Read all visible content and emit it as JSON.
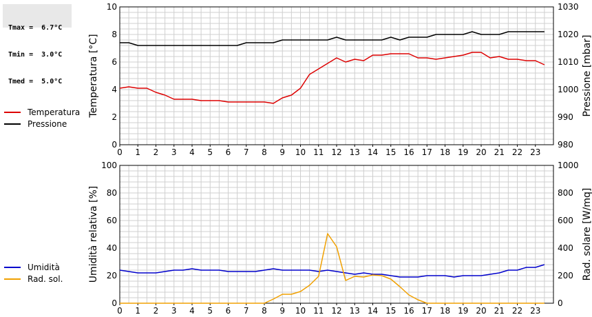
{
  "stats": {
    "tmax": "Tmax =  6.7°C",
    "tmin": "Tmin =  3.0°C",
    "tmed": "Tmed =  5.0°C"
  },
  "colors": {
    "temperatura": "#dd0000",
    "pressione": "#000000",
    "umidita": "#0000cc",
    "rad_sol": "#f0a000",
    "grid": "#cfcfcf",
    "frame": "#000000"
  },
  "legend_top": {
    "temperatura": "Temperatura",
    "pressione": "Pressione"
  },
  "legend_bottom": {
    "umidita": "Umidità",
    "rad_sol": "Rad. sol."
  },
  "chart_data": [
    {
      "type": "line",
      "ylabel_left": "Temperatura [°C]",
      "ylabel_right": "Pressione [mbar]",
      "x_ticks": [
        "0",
        "1",
        "2",
        "3",
        "4",
        "5",
        "6",
        "7",
        "8",
        "9",
        "10",
        "11",
        "12",
        "13",
        "14",
        "15",
        "16",
        "17",
        "18",
        "19",
        "20",
        "21",
        "22",
        "23"
      ],
      "xlim": [
        0,
        24
      ],
      "ylim_left": [
        0,
        10
      ],
      "ylim_right": [
        980,
        1030
      ],
      "yticks_left": [
        "0",
        "2",
        "4",
        "6",
        "8",
        "10"
      ],
      "yticks_right": [
        "980",
        "990",
        "1000",
        "1010",
        "1020",
        "1030"
      ],
      "grid": true,
      "series": [
        {
          "name": "Temperatura",
          "axis": "left",
          "x": [
            0,
            0.5,
            1,
            1.5,
            2,
            2.5,
            3,
            3.5,
            4,
            4.5,
            5,
            5.5,
            6,
            6.5,
            7,
            7.5,
            8,
            8.5,
            9,
            9.5,
            10,
            10.5,
            11,
            11.5,
            12,
            12.5,
            13,
            13.5,
            14,
            14.5,
            15,
            15.5,
            16,
            16.5,
            17,
            17.5,
            18,
            18.5,
            19,
            19.5,
            20,
            20.5,
            21,
            21.5,
            22,
            22.5,
            23,
            23.5
          ],
          "y": [
            4.1,
            4.2,
            4.1,
            4.1,
            3.8,
            3.6,
            3.3,
            3.3,
            3.3,
            3.2,
            3.2,
            3.2,
            3.1,
            3.1,
            3.1,
            3.1,
            3.1,
            3.0,
            3.4,
            3.6,
            4.1,
            5.1,
            5.5,
            5.9,
            6.3,
            6.0,
            6.2,
            6.1,
            6.5,
            6.5,
            6.6,
            6.6,
            6.6,
            6.3,
            6.3,
            6.2,
            6.3,
            6.4,
            6.5,
            6.7,
            6.7,
            6.3,
            6.4,
            6.2,
            6.2,
            6.1,
            6.1,
            5.8
          ]
        },
        {
          "name": "Pressione",
          "axis": "right",
          "x": [
            0,
            0.5,
            1,
            1.5,
            2,
            2.5,
            3,
            3.5,
            4,
            4.5,
            5,
            5.5,
            6,
            6.5,
            7,
            7.5,
            8,
            8.5,
            9,
            9.5,
            10,
            10.5,
            11,
            11.5,
            12,
            12.5,
            13,
            13.5,
            14,
            14.5,
            15,
            15.5,
            16,
            16.5,
            17,
            17.5,
            18,
            18.5,
            19,
            19.5,
            20,
            20.5,
            21,
            21.5,
            22,
            22.5,
            23,
            23.5
          ],
          "y": [
            1017,
            1017,
            1016,
            1016,
            1016,
            1016,
            1016,
            1016,
            1016,
            1016,
            1016,
            1016,
            1016,
            1016,
            1017,
            1017,
            1017,
            1017,
            1018,
            1018,
            1018,
            1018,
            1018,
            1018,
            1019,
            1018,
            1018,
            1018,
            1018,
            1018,
            1019,
            1018,
            1019,
            1019,
            1019,
            1020,
            1020,
            1020,
            1020,
            1021,
            1020,
            1020,
            1020,
            1021,
            1021,
            1021,
            1021,
            1021
          ]
        }
      ]
    },
    {
      "type": "line",
      "ylabel_left": "Umidità relativa [%]",
      "ylabel_right": "Rad. solare [W/mq]",
      "x_ticks": [
        "0",
        "1",
        "2",
        "3",
        "4",
        "5",
        "6",
        "7",
        "8",
        "9",
        "10",
        "11",
        "12",
        "13",
        "14",
        "15",
        "16",
        "17",
        "18",
        "19",
        "20",
        "21",
        "22",
        "23"
      ],
      "xlim": [
        0,
        24
      ],
      "ylim_left": [
        0,
        100
      ],
      "ylim_right": [
        0,
        1000
      ],
      "yticks_left": [
        "0",
        "20",
        "40",
        "60",
        "80",
        "100"
      ],
      "yticks_right": [
        "0",
        "200",
        "400",
        "600",
        "800",
        "1000"
      ],
      "grid": true,
      "series": [
        {
          "name": "Umidità",
          "axis": "left",
          "x": [
            0,
            0.5,
            1,
            1.5,
            2,
            2.5,
            3,
            3.5,
            4,
            4.5,
            5,
            5.5,
            6,
            6.5,
            7,
            7.5,
            8,
            8.5,
            9,
            9.5,
            10,
            10.5,
            11,
            11.5,
            12,
            12.5,
            13,
            13.5,
            14,
            14.5,
            15,
            15.5,
            16,
            16.5,
            17,
            17.5,
            18,
            18.5,
            19,
            19.5,
            20,
            20.5,
            21,
            21.5,
            22,
            22.5,
            23,
            23.5
          ],
          "y": [
            24,
            23,
            22,
            22,
            22,
            23,
            24,
            24,
            25,
            24,
            24,
            24,
            23,
            23,
            23,
            23,
            24,
            25,
            24,
            24,
            24,
            24,
            23,
            24,
            23,
            22,
            21,
            22,
            21,
            21,
            20,
            19,
            19,
            19,
            20,
            20,
            20,
            19,
            20,
            20,
            20,
            21,
            22,
            24,
            24,
            26,
            26,
            28
          ]
        },
        {
          "name": "Rad. sol.",
          "axis": "right",
          "x": [
            0,
            0.5,
            1,
            1.5,
            2,
            2.5,
            3,
            3.5,
            4,
            4.5,
            5,
            5.5,
            6,
            6.5,
            7,
            7.5,
            8,
            8.5,
            9,
            9.5,
            10,
            10.5,
            11,
            11.5,
            12,
            12.5,
            13,
            13.5,
            14,
            14.5,
            15,
            15.5,
            16,
            16.5,
            17,
            17.5,
            18,
            18.5,
            19,
            19.5,
            20,
            20.5,
            21,
            21.5,
            22,
            22.5,
            23,
            23.5
          ],
          "y": [
            0,
            0,
            0,
            0,
            0,
            0,
            0,
            0,
            0,
            0,
            0,
            0,
            0,
            0,
            0,
            0,
            0,
            30,
            65,
            65,
            85,
            130,
            195,
            505,
            410,
            165,
            195,
            190,
            205,
            200,
            175,
            120,
            60,
            25,
            0,
            0,
            0,
            0,
            0,
            0,
            0,
            0,
            0,
            0,
            0,
            0,
            0,
            0
          ]
        }
      ]
    }
  ]
}
